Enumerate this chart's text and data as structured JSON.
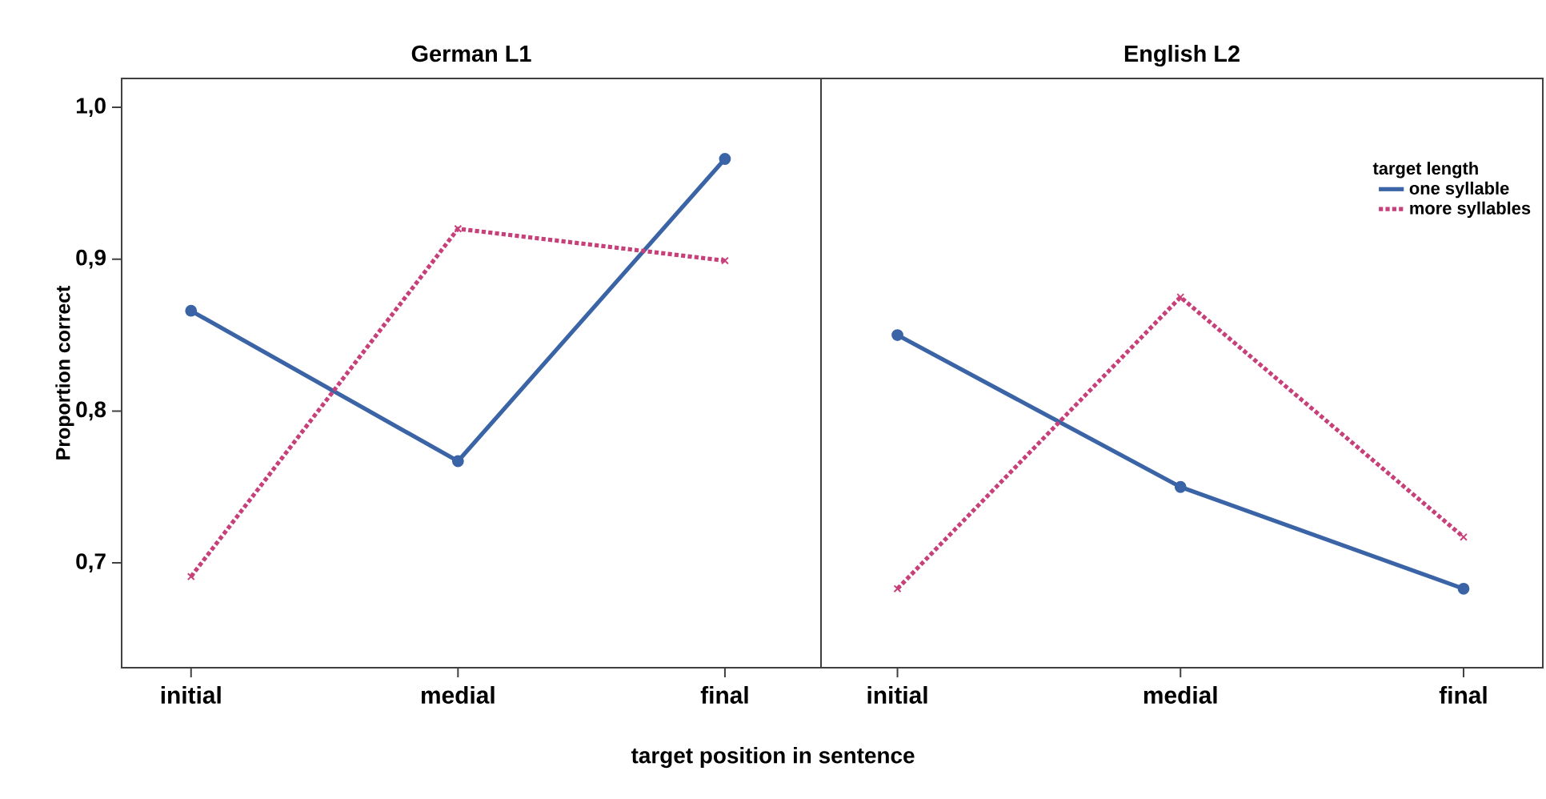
{
  "chart_data": [
    {
      "type": "line",
      "title": "German L1",
      "xlabel": "target position in sentence",
      "ylabel": "Proportion correct",
      "categories": [
        "initial",
        "medial",
        "final"
      ],
      "series": [
        {
          "color": "#3a64a6",
          "values": [
            0.866,
            0.767,
            0.966
          ],
          "marker": "circle",
          "line_style": "solid"
        },
        {
          "color": "#c8407a",
          "values": [
            0.691,
            0.92,
            0.899
          ],
          "marker": "cross",
          "line_style": "dotted"
        }
      ],
      "ylim": [
        0.631,
        1.019
      ],
      "yticks": [
        {
          "value": 0.7,
          "label": "0,7"
        },
        {
          "value": 0.8,
          "label": "0,8"
        },
        {
          "value": 0.9,
          "label": "0,9"
        },
        {
          "value": 1.0,
          "label": "1,0"
        }
      ],
      "legend": false
    },
    {
      "type": "line",
      "title": "English L2",
      "legend_title": "target length",
      "categories": [
        "initial",
        "medial",
        "final"
      ],
      "series": [
        {
          "name": "one syllable",
          "color": "#3a64a6",
          "values": [
            0.85,
            0.75,
            0.683
          ],
          "marker": "circle",
          "line_style": "solid"
        },
        {
          "name": "more syllables",
          "color": "#c8407a",
          "values": [
            0.683,
            0.875,
            0.717
          ],
          "marker": "cross",
          "line_style": "dotted"
        }
      ],
      "ylim": [
        0.631,
        1.019
      ],
      "tick_labels": "x",
      "legend": "top right"
    }
  ]
}
